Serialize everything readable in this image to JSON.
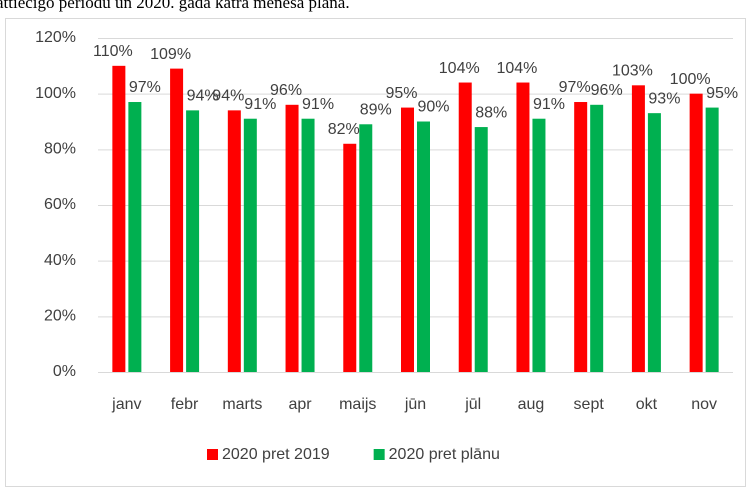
{
  "chart_data": {
    "type": "bar",
    "title": "attiecīgo periodu un 2020. gada katra mēneša plānā.",
    "categories": [
      "janv",
      "febr",
      "marts",
      "apr",
      "maijs",
      "jūn",
      "jūl",
      "aug",
      "sept",
      "okt",
      "nov"
    ],
    "series": [
      {
        "name": "2020 pret 2019",
        "color": "#ff0000",
        "values": [
          110,
          109,
          94,
          96,
          82,
          95,
          104,
          104,
          97,
          103,
          100
        ],
        "value_labels": [
          "110%",
          "109%",
          "94%",
          "96%",
          "82%",
          "95%",
          "104%",
          "104%",
          "97%",
          "103%",
          "100%"
        ]
      },
      {
        "name": "2020 pret plānu",
        "color": "#00b050",
        "values": [
          97,
          94,
          91,
          91,
          89,
          90,
          88,
          91,
          96,
          93,
          95
        ],
        "value_labels": [
          "97%",
          "94%",
          "91%",
          "91%",
          "89%",
          "90%",
          "88%",
          "91%",
          "96%",
          "93%",
          "95%"
        ]
      }
    ],
    "ylim": [
      0,
      120
    ],
    "yticks": [
      {
        "value": 0,
        "label": "0%"
      },
      {
        "value": 20,
        "label": "20%"
      },
      {
        "value": 40,
        "label": "40%"
      },
      {
        "value": 60,
        "label": "60%"
      },
      {
        "value": 80,
        "label": "80%"
      },
      {
        "value": 100,
        "label": "100%"
      },
      {
        "value": 120,
        "label": "120%"
      }
    ],
    "grid": true,
    "legend": "bottom"
  }
}
